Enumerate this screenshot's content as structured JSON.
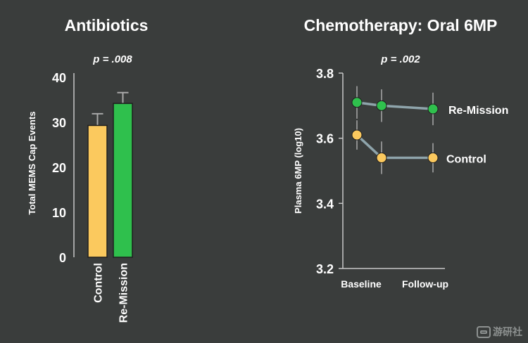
{
  "watermark": {
    "text": "游研社",
    "icon": "gamepad-icon"
  },
  "colors": {
    "background": "#3a3d3c",
    "control": "#fbc95e",
    "remission": "#2fc04d",
    "line": "#8ea4ab",
    "errorbar": "#a9a9a9",
    "axis": "#c8c8c8"
  },
  "chart_data": [
    {
      "type": "bar",
      "title": "Antibiotics",
      "annotation": "p = .008",
      "ylabel": "Total MEMS Cap Events",
      "xlabel": "",
      "categories": [
        "Control",
        "Re-Mission"
      ],
      "values": [
        29.3,
        34.2
      ],
      "error": [
        2.6,
        2.4
      ],
      "ylim": [
        0,
        40
      ],
      "yticks": [
        0,
        10,
        20,
        30,
        40
      ],
      "grid": false
    },
    {
      "type": "line",
      "title": "Chemotherapy: Oral 6MP",
      "annotation": "p = .002",
      "ylabel": "Plasma 6MP (log10)",
      "xlabel": "",
      "xtick_labels": [
        "Baseline",
        "Follow-up"
      ],
      "ylim": [
        3.2,
        3.8
      ],
      "yticks": [
        "3.2",
        "3.4",
        "3.6",
        "3.8"
      ],
      "grid": false,
      "series": [
        {
          "name": "Re-Mission",
          "x": [
            1,
            2,
            3
          ],
          "y": [
            3.71,
            3.7,
            3.69
          ],
          "error": [
            0.05,
            0.05,
            0.05
          ]
        },
        {
          "name": "Control",
          "x": [
            1,
            2,
            3
          ],
          "y": [
            3.61,
            3.54,
            3.54
          ],
          "error": [
            0.045,
            0.05,
            0.045
          ]
        }
      ]
    }
  ]
}
